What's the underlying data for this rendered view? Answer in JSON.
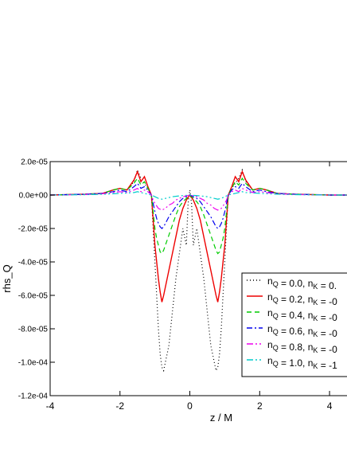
{
  "chart_data": {
    "type": "line",
    "xlabel": "z / M",
    "ylabel": "rhs_Q",
    "xlim": [
      -4,
      4.5
    ],
    "ylim": [
      -0.00012,
      2e-05
    ],
    "x_ticks": [
      -4,
      -2,
      0,
      2,
      4
    ],
    "x_tick_labels": [
      "-4",
      "-2",
      "0",
      "2",
      "4"
    ],
    "y_ticks": [
      2e-05,
      0,
      -2e-05,
      -4e-05,
      -6e-05,
      -8e-05,
      -0.0001,
      -0.00012
    ],
    "y_tick_labels": [
      "2.0e-05",
      "0.0e+00",
      "-2.0e-05",
      "-4.0e-05",
      "-6.0e-05",
      "-8.0e-05",
      "-1.0e-04",
      "-1.2e-04"
    ],
    "grid": false,
    "legend_position": "center-right",
    "series": [
      {
        "legend": {
          "n": "0.0",
          "k": "0."
        },
        "color": "#000000",
        "dash": "1,3",
        "points": [
          [
            -4,
            0
          ],
          [
            -3,
            5e-07
          ],
          [
            -2.5,
            1e-06
          ],
          [
            -2.2,
            3e-06
          ],
          [
            -2,
            4e-06
          ],
          [
            -1.8,
            3e-06
          ],
          [
            -1.6,
            8e-06
          ],
          [
            -1.5,
            1.5e-05
          ],
          [
            -1.4,
            1e-05
          ],
          [
            -1.3,
            7e-06
          ],
          [
            -1.2,
            4e-06
          ],
          [
            -1.1,
            0
          ],
          [
            -1.05,
            -2e-05
          ],
          [
            -1,
            -4e-05
          ],
          [
            -0.95,
            -6e-05
          ],
          [
            -0.9,
            -8e-05
          ],
          [
            -0.85,
            -9.5e-05
          ],
          [
            -0.8,
            -0.000103
          ],
          [
            -0.75,
            -0.000105
          ],
          [
            -0.7,
            -0.0001
          ],
          [
            -0.6,
            -9e-05
          ],
          [
            -0.5,
            -7e-05
          ],
          [
            -0.4,
            -5e-05
          ],
          [
            -0.3,
            -3.5e-05
          ],
          [
            -0.2,
            -2e-05
          ],
          [
            -0.1,
            -3e-05
          ],
          [
            -0.05,
            -5e-06
          ],
          [
            0,
            3e-06
          ],
          [
            0.05,
            -5e-06
          ],
          [
            0.1,
            -3e-05
          ],
          [
            0.2,
            -2e-05
          ],
          [
            0.3,
            -3.5e-05
          ],
          [
            0.4,
            -5e-05
          ],
          [
            0.5,
            -7e-05
          ],
          [
            0.6,
            -9e-05
          ],
          [
            0.7,
            -0.0001
          ],
          [
            0.75,
            -0.000105
          ],
          [
            0.8,
            -0.000103
          ],
          [
            0.85,
            -9.5e-05
          ],
          [
            0.9,
            -8e-05
          ],
          [
            0.95,
            -6e-05
          ],
          [
            1,
            -4e-05
          ],
          [
            1.05,
            -2e-05
          ],
          [
            1.1,
            0
          ],
          [
            1.2,
            4e-06
          ],
          [
            1.3,
            7e-06
          ],
          [
            1.4,
            1e-05
          ],
          [
            1.5,
            1.5e-05
          ],
          [
            1.6,
            8e-06
          ],
          [
            1.8,
            3e-06
          ],
          [
            2,
            4e-06
          ],
          [
            2.2,
            3e-06
          ],
          [
            2.5,
            1e-06
          ],
          [
            3,
            5e-07
          ],
          [
            4,
            0
          ],
          [
            4.5,
            0
          ]
        ]
      },
      {
        "legend": {
          "n": "0.2",
          "k": "-0"
        },
        "color": "#ee0000",
        "dash": "",
        "points": [
          [
            -4,
            0
          ],
          [
            -3,
            5e-07
          ],
          [
            -2.5,
            1e-06
          ],
          [
            -2.2,
            3e-06
          ],
          [
            -2,
            4e-06
          ],
          [
            -1.8,
            3e-06
          ],
          [
            -1.6,
            9e-06
          ],
          [
            -1.5,
            1.4e-05
          ],
          [
            -1.4,
            8e-06
          ],
          [
            -1.3,
            1.1e-05
          ],
          [
            -1.2,
            5e-06
          ],
          [
            -1.1,
            0
          ],
          [
            -1.05,
            -1.5e-05
          ],
          [
            -1,
            -3e-05
          ],
          [
            -0.95,
            -4e-05
          ],
          [
            -0.9,
            -5e-05
          ],
          [
            -0.85,
            -5.8e-05
          ],
          [
            -0.8,
            -6.4e-05
          ],
          [
            -0.75,
            -6e-05
          ],
          [
            -0.7,
            -5.5e-05
          ],
          [
            -0.6,
            -4.5e-05
          ],
          [
            -0.5,
            -3.5e-05
          ],
          [
            -0.4,
            -2.5e-05
          ],
          [
            -0.3,
            -1.5e-05
          ],
          [
            -0.2,
            -8e-06
          ],
          [
            -0.1,
            -3e-06
          ],
          [
            0,
            0
          ],
          [
            0.1,
            -3e-06
          ],
          [
            0.2,
            -8e-06
          ],
          [
            0.3,
            -1.5e-05
          ],
          [
            0.4,
            -2.5e-05
          ],
          [
            0.5,
            -3.5e-05
          ],
          [
            0.6,
            -4.5e-05
          ],
          [
            0.7,
            -5.5e-05
          ],
          [
            0.75,
            -6e-05
          ],
          [
            0.8,
            -6.4e-05
          ],
          [
            0.85,
            -5.8e-05
          ],
          [
            0.9,
            -5e-05
          ],
          [
            0.95,
            -4e-05
          ],
          [
            1,
            -3e-05
          ],
          [
            1.05,
            -1.5e-05
          ],
          [
            1.1,
            0
          ],
          [
            1.2,
            5e-06
          ],
          [
            1.3,
            1.1e-05
          ],
          [
            1.4,
            8e-06
          ],
          [
            1.5,
            1.4e-05
          ],
          [
            1.6,
            9e-06
          ],
          [
            1.8,
            3e-06
          ],
          [
            2,
            4e-06
          ],
          [
            2.2,
            3e-06
          ],
          [
            2.5,
            1e-06
          ],
          [
            3,
            5e-07
          ],
          [
            4,
            0
          ],
          [
            4.5,
            0
          ]
        ]
      },
      {
        "legend": {
          "n": "0.4",
          "k": "-0"
        },
        "color": "#00cc00",
        "dash": "6,4",
        "points": [
          [
            -4,
            0
          ],
          [
            -3,
            5e-07
          ],
          [
            -2.5,
            1e-06
          ],
          [
            -2.2,
            3e-06
          ],
          [
            -2,
            4e-06
          ],
          [
            -1.8,
            3e-06
          ],
          [
            -1.6,
            7e-06
          ],
          [
            -1.5,
            1e-05
          ],
          [
            -1.4,
            6e-06
          ],
          [
            -1.3,
            8e-06
          ],
          [
            -1.2,
            4e-06
          ],
          [
            -1.1,
            0
          ],
          [
            -1.05,
            -1e-05
          ],
          [
            -1,
            -2e-05
          ],
          [
            -0.95,
            -2.6e-05
          ],
          [
            -0.9,
            -3e-05
          ],
          [
            -0.85,
            -3.4e-05
          ],
          [
            -0.8,
            -3.5e-05
          ],
          [
            -0.75,
            -3.3e-05
          ],
          [
            -0.7,
            -3e-05
          ],
          [
            -0.6,
            -2.4e-05
          ],
          [
            -0.5,
            -1.8e-05
          ],
          [
            -0.4,
            -1.2e-05
          ],
          [
            -0.3,
            -7e-06
          ],
          [
            -0.2,
            -4e-06
          ],
          [
            -0.1,
            -2e-06
          ],
          [
            0,
            0
          ],
          [
            0.1,
            -2e-06
          ],
          [
            0.2,
            -4e-06
          ],
          [
            0.3,
            -7e-06
          ],
          [
            0.4,
            -1.2e-05
          ],
          [
            0.5,
            -1.8e-05
          ],
          [
            0.6,
            -2.4e-05
          ],
          [
            0.7,
            -3e-05
          ],
          [
            0.75,
            -3.3e-05
          ],
          [
            0.8,
            -3.5e-05
          ],
          [
            0.85,
            -3.4e-05
          ],
          [
            0.9,
            -3e-05
          ],
          [
            0.95,
            -2.6e-05
          ],
          [
            1,
            -2e-05
          ],
          [
            1.05,
            -1e-05
          ],
          [
            1.1,
            0
          ],
          [
            1.2,
            4e-06
          ],
          [
            1.3,
            8e-06
          ],
          [
            1.4,
            6e-06
          ],
          [
            1.5,
            1e-05
          ],
          [
            1.6,
            7e-06
          ],
          [
            1.8,
            3e-06
          ],
          [
            2,
            4e-06
          ],
          [
            2.2,
            3e-06
          ],
          [
            2.5,
            1e-06
          ],
          [
            3,
            5e-07
          ],
          [
            4,
            0
          ],
          [
            4.5,
            0
          ]
        ]
      },
      {
        "legend": {
          "n": "0.6",
          "k": "-0"
        },
        "color": "#0000ee",
        "dash": "7,3,2,3",
        "points": [
          [
            -4,
            0
          ],
          [
            -3,
            5e-07
          ],
          [
            -2.5,
            1e-06
          ],
          [
            -2.2,
            2e-06
          ],
          [
            -2,
            3e-06
          ],
          [
            -1.8,
            2e-06
          ],
          [
            -1.6,
            5e-06
          ],
          [
            -1.5,
            7e-06
          ],
          [
            -1.4,
            4e-06
          ],
          [
            -1.3,
            5e-06
          ],
          [
            -1.2,
            3e-06
          ],
          [
            -1.1,
            0
          ],
          [
            -1.05,
            -5e-06
          ],
          [
            -1,
            -1e-05
          ],
          [
            -0.95,
            -1.4e-05
          ],
          [
            -0.9,
            -1.7e-05
          ],
          [
            -0.85,
            -1.9e-05
          ],
          [
            -0.8,
            -2e-05
          ],
          [
            -0.75,
            -1.9e-05
          ],
          [
            -0.7,
            -1.7e-05
          ],
          [
            -0.6,
            -1.3e-05
          ],
          [
            -0.5,
            -1e-05
          ],
          [
            -0.4,
            -7e-06
          ],
          [
            -0.3,
            -4e-06
          ],
          [
            -0.2,
            -2e-06
          ],
          [
            -0.1,
            -1e-06
          ],
          [
            0,
            0
          ],
          [
            0.1,
            -1e-06
          ],
          [
            0.2,
            -2e-06
          ],
          [
            0.3,
            -4e-06
          ],
          [
            0.4,
            -7e-06
          ],
          [
            0.5,
            -1e-05
          ],
          [
            0.6,
            -1.3e-05
          ],
          [
            0.7,
            -1.7e-05
          ],
          [
            0.75,
            -1.9e-05
          ],
          [
            0.8,
            -2e-05
          ],
          [
            0.85,
            -1.9e-05
          ],
          [
            0.9,
            -1.7e-05
          ],
          [
            0.95,
            -1.4e-05
          ],
          [
            1,
            -1e-05
          ],
          [
            1.05,
            -5e-06
          ],
          [
            1.1,
            0
          ],
          [
            1.2,
            3e-06
          ],
          [
            1.3,
            5e-06
          ],
          [
            1.4,
            4e-06
          ],
          [
            1.5,
            7e-06
          ],
          [
            1.6,
            5e-06
          ],
          [
            1.8,
            2e-06
          ],
          [
            2,
            3e-06
          ],
          [
            2.2,
            2e-06
          ],
          [
            2.5,
            1e-06
          ],
          [
            3,
            5e-07
          ],
          [
            4,
            0
          ],
          [
            4.5,
            0
          ]
        ]
      },
      {
        "legend": {
          "n": "0.8",
          "k": "-0"
        },
        "color": "#ee00ee",
        "dash": "8,3,2,3,2,3",
        "points": [
          [
            -4,
            0
          ],
          [
            -3,
            3e-07
          ],
          [
            -2.5,
            8e-07
          ],
          [
            -2.2,
            1.5e-06
          ],
          [
            -2,
            2e-06
          ],
          [
            -1.8,
            1.5e-06
          ],
          [
            -1.6,
            3e-06
          ],
          [
            -1.5,
            4e-06
          ],
          [
            -1.4,
            2e-06
          ],
          [
            -1.3,
            3e-06
          ],
          [
            -1.2,
            2e-06
          ],
          [
            -1.1,
            0
          ],
          [
            -1.05,
            -3e-06
          ],
          [
            -1,
            -5e-06
          ],
          [
            -0.9,
            -8e-06
          ],
          [
            -0.8,
            -9e-06
          ],
          [
            -0.7,
            -8e-06
          ],
          [
            -0.6,
            -6e-06
          ],
          [
            -0.5,
            -5e-06
          ],
          [
            -0.4,
            -3e-06
          ],
          [
            -0.3,
            -2e-06
          ],
          [
            -0.2,
            -1e-06
          ],
          [
            -0.1,
            -5e-07
          ],
          [
            0,
            0
          ],
          [
            0.1,
            -5e-07
          ],
          [
            0.2,
            -1e-06
          ],
          [
            0.3,
            -2e-06
          ],
          [
            0.4,
            -3e-06
          ],
          [
            0.5,
            -5e-06
          ],
          [
            0.6,
            -6e-06
          ],
          [
            0.7,
            -8e-06
          ],
          [
            0.8,
            -9e-06
          ],
          [
            0.9,
            -8e-06
          ],
          [
            1,
            -5e-06
          ],
          [
            1.05,
            -3e-06
          ],
          [
            1.1,
            0
          ],
          [
            1.2,
            2e-06
          ],
          [
            1.3,
            3e-06
          ],
          [
            1.4,
            2e-06
          ],
          [
            1.5,
            4e-06
          ],
          [
            1.6,
            3e-06
          ],
          [
            1.8,
            1.5e-06
          ],
          [
            2,
            2e-06
          ],
          [
            2.2,
            1.5e-06
          ],
          [
            2.5,
            8e-07
          ],
          [
            3,
            3e-07
          ],
          [
            4,
            0
          ],
          [
            4.5,
            0
          ]
        ]
      },
      {
        "legend": {
          "n": "1.0",
          "k": "-1"
        },
        "color": "#00cccc",
        "dash": "8,3,2,3,2,3,2,3",
        "points": [
          [
            -4,
            0
          ],
          [
            -3,
            2e-07
          ],
          [
            -2.5,
            5e-07
          ],
          [
            -2,
            1e-06
          ],
          [
            -1.6,
            1.5e-06
          ],
          [
            -1.5,
            2e-06
          ],
          [
            -1.3,
            1e-06
          ],
          [
            -1.1,
            0
          ],
          [
            -1,
            -1e-06
          ],
          [
            -0.9,
            -2e-06
          ],
          [
            -0.8,
            -2.5e-06
          ],
          [
            -0.7,
            -2e-06
          ],
          [
            -0.6,
            -1.5e-06
          ],
          [
            -0.5,
            -1e-06
          ],
          [
            -0.3,
            -5e-07
          ],
          [
            0,
            0
          ],
          [
            0.3,
            -5e-07
          ],
          [
            0.5,
            -1e-06
          ],
          [
            0.6,
            -1.5e-06
          ],
          [
            0.7,
            -2e-06
          ],
          [
            0.8,
            -2.5e-06
          ],
          [
            0.9,
            -2e-06
          ],
          [
            1,
            -1e-06
          ],
          [
            1.1,
            0
          ],
          [
            1.3,
            1e-06
          ],
          [
            1.5,
            2e-06
          ],
          [
            1.6,
            1.5e-06
          ],
          [
            2,
            1e-06
          ],
          [
            2.5,
            5e-07
          ],
          [
            3,
            2e-07
          ],
          [
            4,
            0
          ],
          [
            4.5,
            0
          ]
        ]
      }
    ]
  }
}
